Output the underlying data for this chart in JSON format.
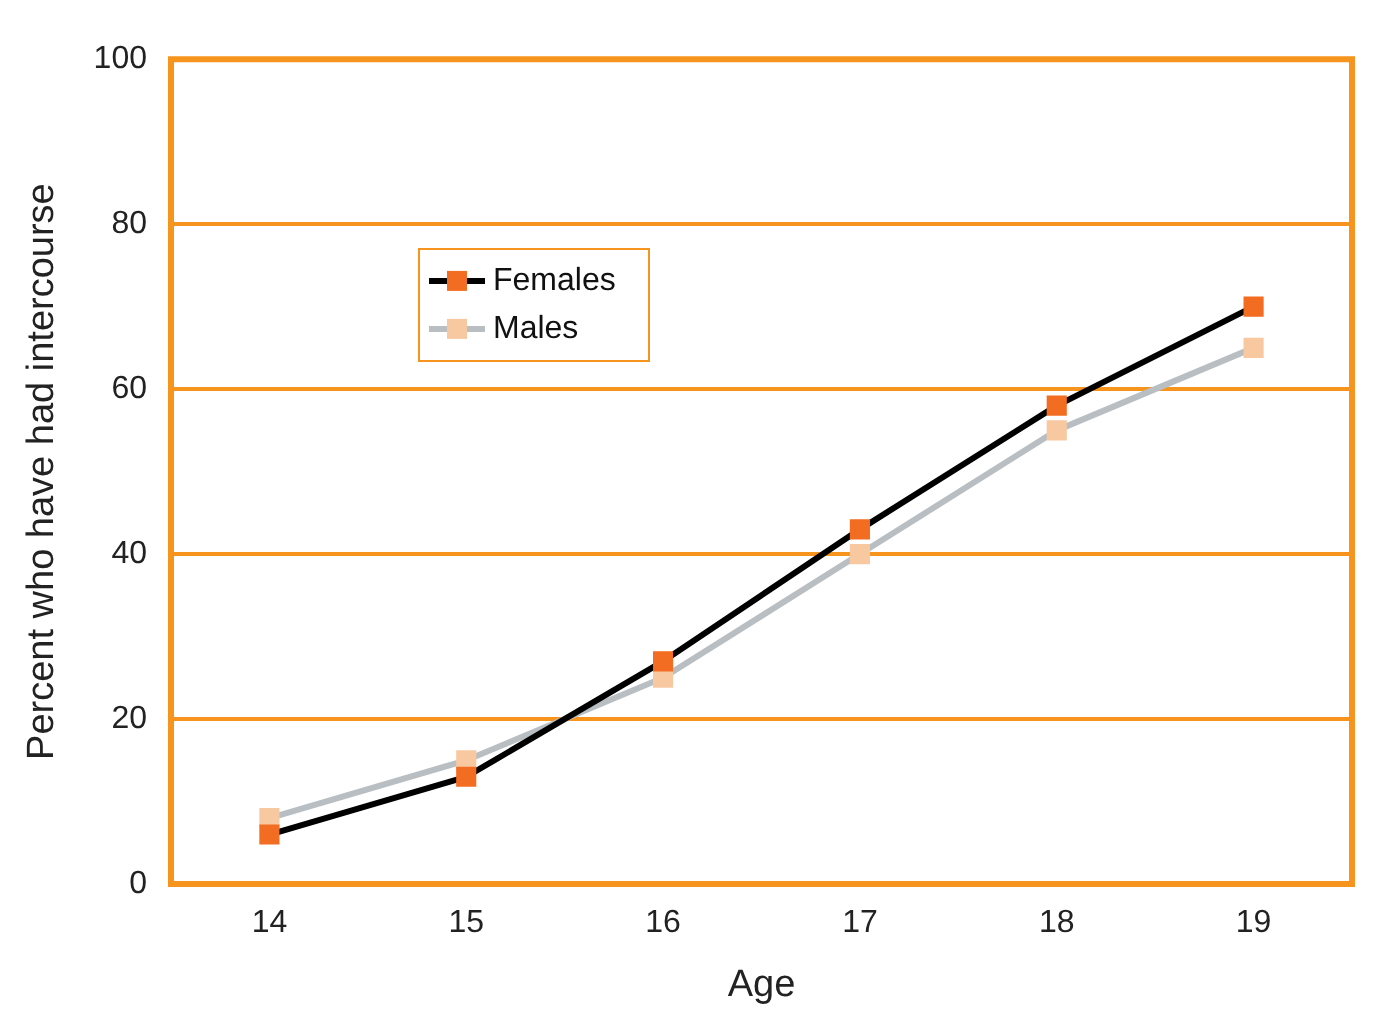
{
  "chart_data": {
    "type": "line",
    "xlabel": "Age",
    "ylabel": "Percent who have had intercourse",
    "categories": [
      "14",
      "15",
      "16",
      "17",
      "18",
      "19"
    ],
    "series": [
      {
        "name": "Females",
        "color": "#000000",
        "colors": [
          "#f26d21",
          "#f26d21",
          "#f26d21",
          "#f26d21",
          "#f26d21",
          "#f26d21"
        ],
        "values": [
          6,
          13,
          27,
          43,
          58,
          70
        ]
      },
      {
        "name": "Males",
        "color": "#b8bec2",
        "colors": [
          "#f8c9a0",
          "#f8c9a0",
          "#f8c9a0",
          "#f8c9a0",
          "#f8c9a0",
          "#f8c9a0"
        ],
        "values": [
          8,
          15,
          25,
          40,
          55,
          65
        ]
      }
    ],
    "ylim": [
      0,
      100
    ],
    "yticks": [
      0,
      20,
      40,
      60,
      80,
      100
    ],
    "grid": "y",
    "legend": "top left",
    "marker": "square",
    "line_style": "solid"
  }
}
